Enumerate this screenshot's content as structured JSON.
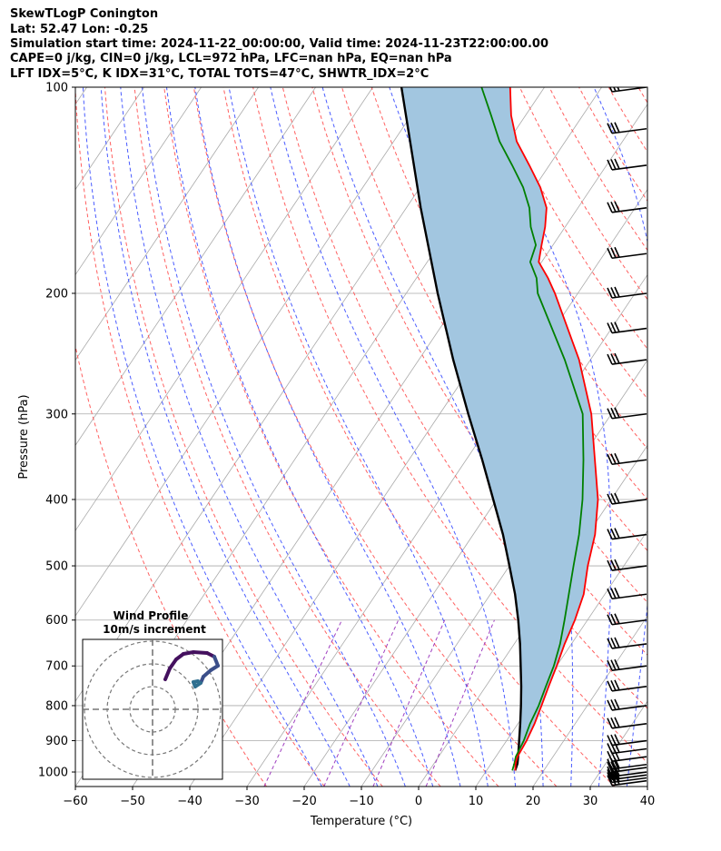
{
  "header": {
    "lines": [
      "SkewTLogP Conington",
      "Lat: 52.47   Lon: -0.25",
      "Simulation start time: 2024-11-22_00:00:00, Valid time: 2024-11-23T22:00:00.00",
      "CAPE=0 j/kg, CIN=0 j/kg, LCL=972 hPa, LFC=nan hPa, EQ=nan hPa",
      "LFT IDX=5°C, K IDX=31°C, TOTAL TOTS=47°C, SHWTR_IDX=2°C"
    ]
  },
  "colors": {
    "temperature": "#ff0000",
    "dewpoint": "#008000",
    "parcel": "#000000",
    "shade": "#a2c6e0",
    "dry_adiabats": "#ff6060",
    "moist_adiabats": "#4a5cff",
    "mixing_ratio": "#a040c0",
    "isotherms": "#aaaaaa"
  },
  "chart_data": {
    "type": "skewt",
    "xlabel": "Temperature (°C)",
    "ylabel": "Pressure (hPa)",
    "xlim": [
      -60,
      40
    ],
    "ylim": [
      1050,
      100
    ],
    "xticks": [
      "−60",
      "−50",
      "−40",
      "−30",
      "−20",
      "−10",
      "0",
      "10",
      "20",
      "30",
      "40"
    ],
    "xtick_values": [
      -60,
      -50,
      -40,
      -30,
      -20,
      -10,
      0,
      10,
      20,
      30,
      40
    ],
    "yticks": [
      "1000",
      "900",
      "800",
      "700",
      "600",
      "500",
      "400",
      "300",
      "200",
      "100"
    ],
    "ytick_values": [
      1000,
      900,
      800,
      700,
      600,
      500,
      400,
      300,
      200,
      100
    ],
    "grid": true,
    "temperature": [
      [
        995,
        15.0
      ],
      [
        970,
        14.2
      ],
      [
        950,
        13.8
      ],
      [
        900,
        13.5
      ],
      [
        850,
        12.9
      ],
      [
        800,
        12.0
      ],
      [
        750,
        11.0
      ],
      [
        700,
        10.0
      ],
      [
        650,
        8.8
      ],
      [
        600,
        7.8
      ],
      [
        550,
        6.3
      ],
      [
        500,
        3.7
      ],
      [
        450,
        1.3
      ],
      [
        400,
        -2.3
      ],
      [
        350,
        -7.5
      ],
      [
        300,
        -13.5
      ],
      [
        250,
        -22.0
      ],
      [
        200,
        -34.0
      ],
      [
        190,
        -37.0
      ],
      [
        180,
        -40.5
      ],
      [
        170,
        -42.0
      ],
      [
        160,
        -43.5
      ],
      [
        150,
        -45.5
      ],
      [
        140,
        -49.0
      ],
      [
        130,
        -53.5
      ],
      [
        120,
        -58.5
      ],
      [
        110,
        -62.5
      ],
      [
        100,
        -66.0
      ]
    ],
    "dewpoint": [
      [
        995,
        14.5
      ],
      [
        970,
        14.0
      ],
      [
        950,
        13.5
      ],
      [
        900,
        13.0
      ],
      [
        850,
        12.1
      ],
      [
        800,
        11.5
      ],
      [
        750,
        10.5
      ],
      [
        700,
        9.5
      ],
      [
        650,
        8.0
      ],
      [
        600,
        6.0
      ],
      [
        550,
        3.7
      ],
      [
        500,
        1.2
      ],
      [
        450,
        -1.5
      ],
      [
        400,
        -5.0
      ],
      [
        350,
        -9.5
      ],
      [
        300,
        -15.0
      ],
      [
        250,
        -24.5
      ],
      [
        200,
        -37.0
      ],
      [
        190,
        -39.0
      ],
      [
        180,
        -42.0
      ],
      [
        170,
        -43.0
      ],
      [
        160,
        -46.0
      ],
      [
        150,
        -48.5
      ],
      [
        140,
        -52.0
      ],
      [
        130,
        -56.5
      ],
      [
        120,
        -61.5
      ],
      [
        110,
        -66.0
      ],
      [
        100,
        -71.0
      ]
    ],
    "parcel": [
      [
        995,
        15.0
      ],
      [
        972,
        14.6
      ],
      [
        950,
        13.9
      ],
      [
        900,
        12.2
      ],
      [
        850,
        10.4
      ],
      [
        800,
        8.4
      ],
      [
        750,
        6.2
      ],
      [
        700,
        3.7
      ],
      [
        650,
        1.0
      ],
      [
        600,
        -2.1
      ],
      [
        550,
        -5.7
      ],
      [
        500,
        -10.0
      ],
      [
        450,
        -14.8
      ],
      [
        400,
        -20.6
      ],
      [
        350,
        -27.2
      ],
      [
        300,
        -35.0
      ],
      [
        250,
        -44.0
      ],
      [
        200,
        -54.5
      ],
      [
        150,
        -67.5
      ],
      [
        100,
        -85.0
      ]
    ],
    "wind_barbs": {
      "pressures": [
        100,
        115,
        130,
        150,
        175,
        200,
        225,
        250,
        300,
        350,
        400,
        450,
        500,
        550,
        600,
        650,
        700,
        750,
        800,
        850,
        900,
        925,
        950,
        975,
        985,
        1000,
        1010,
        1020,
        1030
      ]
    },
    "inset": {
      "title": "Wind Profile",
      "subtitle": "10m/s increment"
    }
  }
}
